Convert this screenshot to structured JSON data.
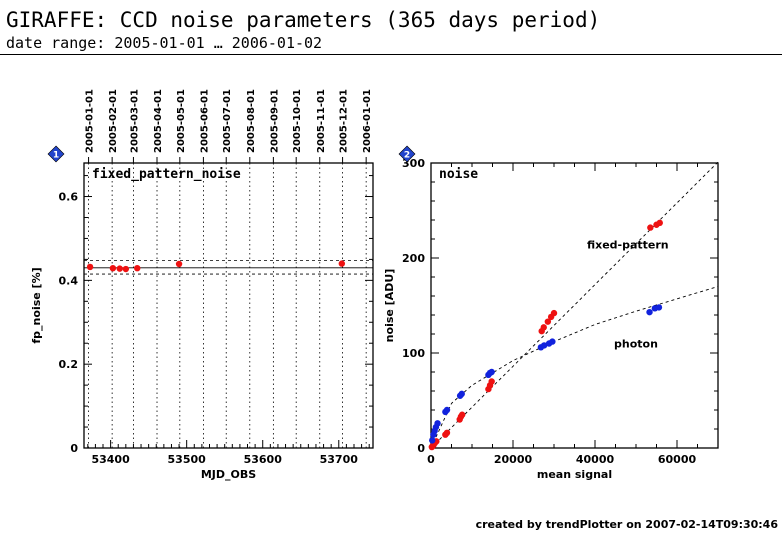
{
  "header": {
    "title": "GIRAFFE: CCD noise parameters (365 days period)",
    "subtitle": "date range: 2005-01-01 … 2006-01-02"
  },
  "footer": {
    "text": "created by trendPlotter on 2007-02-14T09:30:46"
  },
  "colors": {
    "red": "#ee1111",
    "blue": "#1122dd",
    "badge": "#2244cc"
  },
  "chart_data": [
    {
      "type": "scatter",
      "badge": "1",
      "title": "fixed_pattern_noise",
      "xlabel": "MJD_OBS",
      "ylabel": "fp_noise [%]",
      "xlim": [
        53365,
        53745
      ],
      "ylim": [
        0,
        0.68
      ],
      "xticks": [
        53400,
        53500,
        53600,
        53700
      ],
      "yticks": [
        0,
        0.2,
        0.4,
        0.6
      ],
      "ytick_labels": [
        "0",
        "0.2",
        "0.4",
        "0.6"
      ],
      "top_axis_dates": [
        "2005-01-01",
        "2005-02-01",
        "2005-03-01",
        "2005-04-01",
        "2005-05-01",
        "2005-06-01",
        "2005-07-01",
        "2005-08-01",
        "2005-09-01",
        "2005-10-01",
        "2005-11-01",
        "2005-12-01",
        "2006-01-01"
      ],
      "top_axis_mjd": [
        53371,
        53402,
        53430,
        53461,
        53491,
        53522,
        53552,
        53583,
        53614,
        53644,
        53675,
        53705,
        53736
      ],
      "mean_line": 0.43,
      "band": [
        0.415,
        0.447
      ],
      "series": [
        {
          "color": "red",
          "x": [
            53373,
            53403,
            53412,
            53420,
            53435,
            53490,
            53704
          ],
          "y": [
            0.432,
            0.429,
            0.428,
            0.427,
            0.429,
            0.439,
            0.44
          ]
        }
      ],
      "grid": "vertical dotted at month boundaries"
    },
    {
      "type": "scatter",
      "badge": "2",
      "title": "noise",
      "xlabel": "mean signal",
      "ylabel": "noise [ADU]",
      "xlim": [
        0,
        70000
      ],
      "ylim": [
        0,
        300
      ],
      "xticks": [
        0,
        20000,
        40000,
        60000
      ],
      "yticks": [
        0,
        100,
        200,
        300
      ],
      "annotations": [
        {
          "text": "fixed-pattern",
          "x": 48000,
          "y": 210
        },
        {
          "text": "photon",
          "x": 50000,
          "y": 106
        }
      ],
      "series": [
        {
          "color": "red",
          "x": [
            200,
            400,
            600,
            900,
            1300,
            3500,
            3900,
            7000,
            7300,
            7600,
            14000,
            14400,
            14800,
            27000,
            27500,
            28500,
            29300,
            30000,
            53500,
            55000,
            55800
          ],
          "y": [
            1,
            2,
            3,
            5,
            7,
            14,
            16,
            30,
            33,
            35,
            62,
            66,
            70,
            123,
            127,
            133,
            138,
            142,
            232,
            235,
            237
          ]
        },
        {
          "color": "blue",
          "x": [
            300,
            600,
            900,
            1200,
            1600,
            3500,
            3900,
            7100,
            7500,
            14000,
            14400,
            14800,
            26800,
            27600,
            28800,
            29600,
            53300,
            54600,
            55600
          ],
          "y": [
            8,
            14,
            18,
            22,
            26,
            38,
            40,
            55,
            57,
            77,
            79,
            80,
            106,
            108,
            110,
            112,
            143,
            147,
            148
          ]
        }
      ],
      "fit_lines": [
        {
          "name": "fixed-pattern",
          "x": [
            0,
            70000
          ],
          "y": [
            0,
            301
          ]
        },
        {
          "name": "photon",
          "points": [
            [
              0,
              0
            ],
            [
              5000,
              47
            ],
            [
              10000,
              66
            ],
            [
              20000,
              92
            ],
            [
              30000,
              112
            ],
            [
              40000,
              130
            ],
            [
              50000,
              144
            ],
            [
              60000,
              157
            ],
            [
              70000,
              170
            ]
          ]
        }
      ]
    }
  ]
}
